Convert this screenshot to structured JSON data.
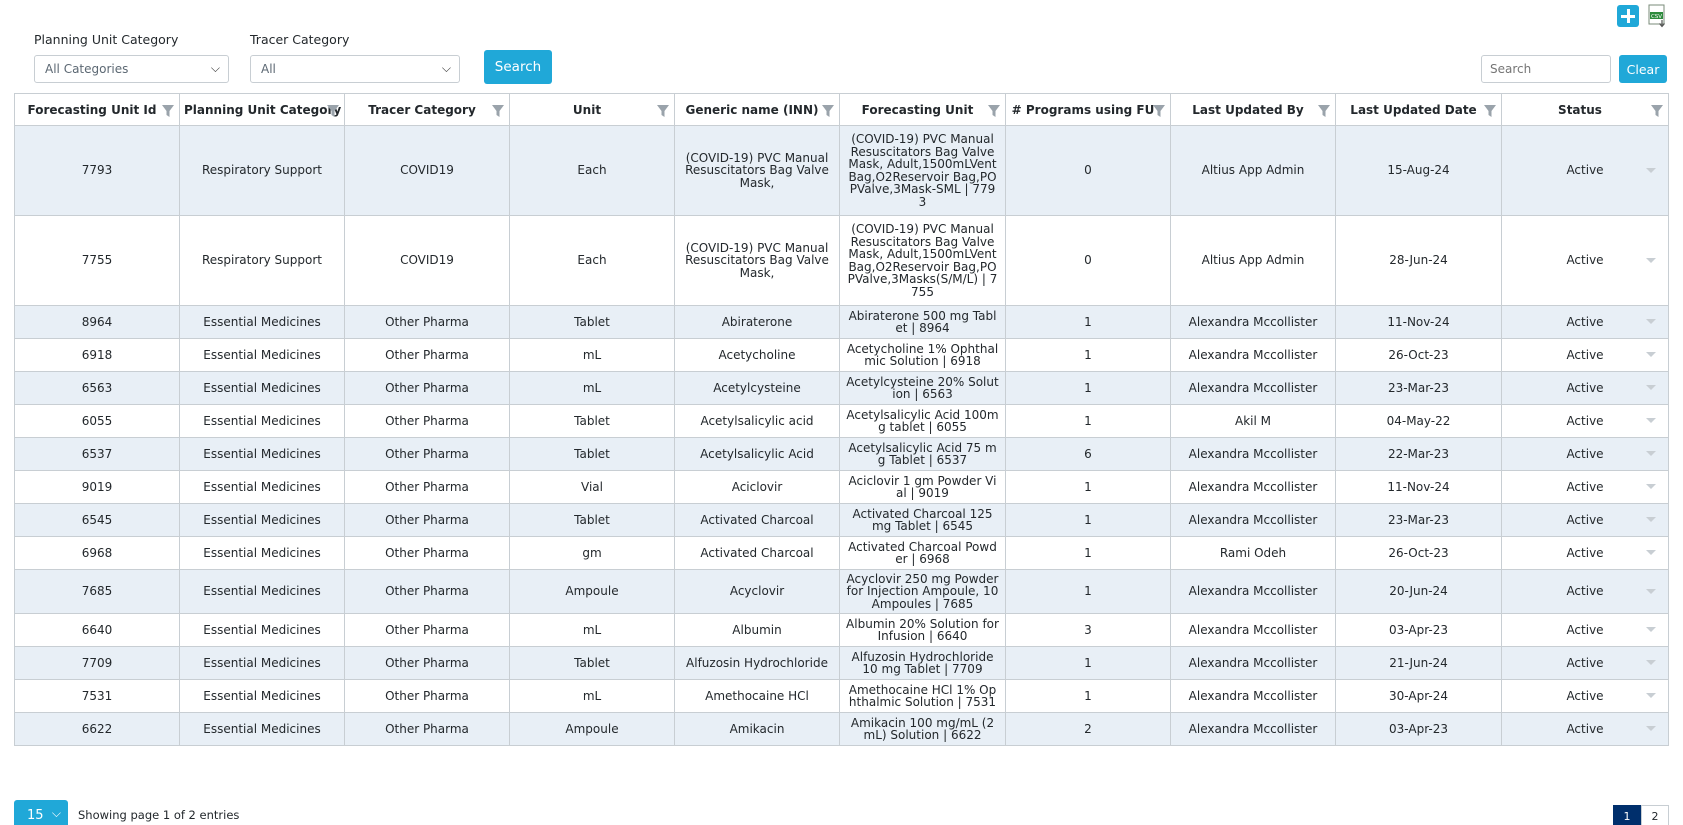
{
  "toolbar": {
    "add_icon": "plus-icon",
    "export_icon": "csv-export-icon"
  },
  "filters": {
    "planning_unit_category": {
      "label": "Planning Unit Category",
      "value": "All Categories"
    },
    "tracer_category": {
      "label": "Tracer Category",
      "value": "All"
    },
    "search_label": "Search"
  },
  "table_search": {
    "placeholder": "Search",
    "clear_label": "Clear"
  },
  "columns": [
    "Forecasting Unit Id",
    "Planning Unit Category",
    "Tracer Category",
    "Unit",
    "Generic name (INN)",
    "Forecasting Unit",
    "# Programs using FU",
    "Last Updated By",
    "Last Updated Date",
    "Status"
  ],
  "rows": [
    {
      "id": "7793",
      "puc": "Respiratory Support",
      "tracer": "COVID19",
      "unit": "Each",
      "generic": "(COVID-19) PVC Manual Resuscitators Bag Valve Mask,",
      "fu": "(COVID-19) PVC Manual Resuscitators Bag Valve Mask, Adult,1500mLVentBag,O2Reservoir Bag,POPValve,3Mask-SML | 7793",
      "programs": "0",
      "updated_by": "Altius App Admin",
      "updated_date": "15-Aug-24",
      "status": "Active"
    },
    {
      "id": "7755",
      "puc": "Respiratory Support",
      "tracer": "COVID19",
      "unit": "Each",
      "generic": "(COVID-19) PVC Manual Resuscitators Bag Valve Mask,",
      "fu": "(COVID-19) PVC Manual Resuscitators Bag Valve Mask, Adult,1500mLVentBag,O2Reservoir Bag,POPValve,3Masks(S/M/L) | 7755",
      "programs": "0",
      "updated_by": "Altius App Admin",
      "updated_date": "28-Jun-24",
      "status": "Active"
    },
    {
      "id": "8964",
      "puc": "Essential Medicines",
      "tracer": "Other Pharma",
      "unit": "Tablet",
      "generic": "Abiraterone",
      "fu": "Abiraterone 500 mg Tablet | 8964",
      "programs": "1",
      "updated_by": "Alexandra Mccollister",
      "updated_date": "11-Nov-24",
      "status": "Active"
    },
    {
      "id": "6918",
      "puc": "Essential Medicines",
      "tracer": "Other Pharma",
      "unit": "mL",
      "generic": "Acetycholine",
      "fu": "Acetycholine 1% Ophthalmic Solution | 6918",
      "programs": "1",
      "updated_by": "Alexandra Mccollister",
      "updated_date": "26-Oct-23",
      "status": "Active"
    },
    {
      "id": "6563",
      "puc": "Essential Medicines",
      "tracer": "Other Pharma",
      "unit": "mL",
      "generic": "Acetylcysteine",
      "fu": "Acetylcysteine 20% Solution | 6563",
      "programs": "1",
      "updated_by": "Alexandra Mccollister",
      "updated_date": "23-Mar-23",
      "status": "Active"
    },
    {
      "id": "6055",
      "puc": "Essential Medicines",
      "tracer": "Other Pharma",
      "unit": "Tablet",
      "generic": "Acetylsalicylic acid",
      "fu": "Acetylsalicylic Acid 100mg tablet | 6055",
      "programs": "1",
      "updated_by": "Akil M",
      "updated_date": "04-May-22",
      "status": "Active"
    },
    {
      "id": "6537",
      "puc": "Essential Medicines",
      "tracer": "Other Pharma",
      "unit": "Tablet",
      "generic": "Acetylsalicylic Acid",
      "fu": "Acetylsalicylic Acid 75 mg Tablet | 6537",
      "programs": "6",
      "updated_by": "Alexandra Mccollister",
      "updated_date": "22-Mar-23",
      "status": "Active"
    },
    {
      "id": "9019",
      "puc": "Essential Medicines",
      "tracer": "Other Pharma",
      "unit": "Vial",
      "generic": "Aciclovir",
      "fu": "Aciclovir 1 gm Powder Vial | 9019",
      "programs": "1",
      "updated_by": "Alexandra Mccollister",
      "updated_date": "11-Nov-24",
      "status": "Active"
    },
    {
      "id": "6545",
      "puc": "Essential Medicines",
      "tracer": "Other Pharma",
      "unit": "Tablet",
      "generic": "Activated Charcoal",
      "fu": "Activated Charcoal 125 mg Tablet | 6545",
      "programs": "1",
      "updated_by": "Alexandra Mccollister",
      "updated_date": "23-Mar-23",
      "status": "Active"
    },
    {
      "id": "6968",
      "puc": "Essential Medicines",
      "tracer": "Other Pharma",
      "unit": "gm",
      "generic": "Activated Charcoal",
      "fu": "Activated Charcoal Powder | 6968",
      "programs": "1",
      "updated_by": "Rami Odeh",
      "updated_date": "26-Oct-23",
      "status": "Active"
    },
    {
      "id": "7685",
      "puc": "Essential Medicines",
      "tracer": "Other Pharma",
      "unit": "Ampoule",
      "generic": "Acyclovir",
      "fu": "Acyclovir 250 mg Powder for Injection Ampoule, 10 Ampoules | 7685",
      "programs": "1",
      "updated_by": "Alexandra Mccollister",
      "updated_date": "20-Jun-24",
      "status": "Active"
    },
    {
      "id": "6640",
      "puc": "Essential Medicines",
      "tracer": "Other Pharma",
      "unit": "mL",
      "generic": "Albumin",
      "fu": "Albumin 20% Solution for Infusion | 6640",
      "programs": "3",
      "updated_by": "Alexandra Mccollister",
      "updated_date": "03-Apr-23",
      "status": "Active"
    },
    {
      "id": "7709",
      "puc": "Essential Medicines",
      "tracer": "Other Pharma",
      "unit": "Tablet",
      "generic": "Alfuzosin Hydrochloride",
      "fu": "Alfuzosin Hydrochloride 10 mg Tablet | 7709",
      "programs": "1",
      "updated_by": "Alexandra Mccollister",
      "updated_date": "21-Jun-24",
      "status": "Active"
    },
    {
      "id": "7531",
      "puc": "Essential Medicines",
      "tracer": "Other Pharma",
      "unit": "mL",
      "generic": "Amethocaine HCl",
      "fu": "Amethocaine HCl 1% Ophthalmic Solution | 7531",
      "programs": "1",
      "updated_by": "Alexandra Mccollister",
      "updated_date": "30-Apr-24",
      "status": "Active"
    },
    {
      "id": "6622",
      "puc": "Essential Medicines",
      "tracer": "Other Pharma",
      "unit": "Ampoule",
      "generic": "Amikacin",
      "fu": "Amikacin 100 mg/mL (2 mL) Solution | 6622",
      "programs": "2",
      "updated_by": "Alexandra Mccollister",
      "updated_date": "03-Apr-23",
      "status": "Active"
    }
  ],
  "pagination": {
    "page_size": "15",
    "info": "Showing page 1 of 2 entries",
    "pages": [
      "1",
      "2"
    ],
    "current": "1"
  },
  "colors": {
    "accent": "#20a8d8",
    "row_alt": "#e8eff6",
    "page_active": "#002f6c"
  }
}
